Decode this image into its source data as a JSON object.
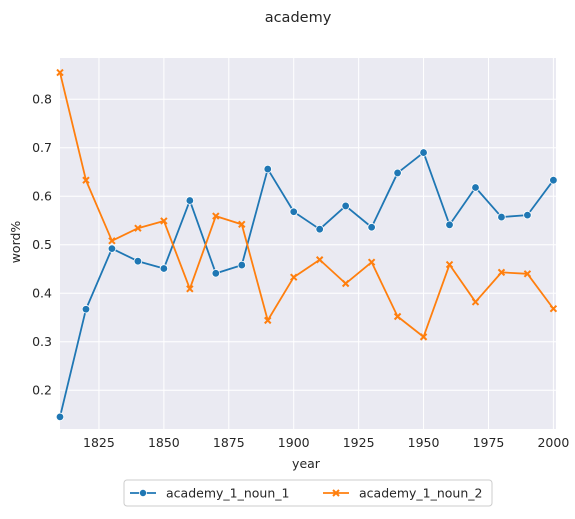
{
  "chart_data": {
    "type": "line",
    "title": "academy",
    "xlabel": "year",
    "ylabel": "word%",
    "xlim": [
      1810,
      2001
    ],
    "ylim": [
      0.12,
      0.885
    ],
    "xticks": [
      1825,
      1850,
      1875,
      1900,
      1925,
      1950,
      1975,
      2000
    ],
    "yticks": [
      0.2,
      0.3,
      0.4,
      0.5,
      0.6,
      0.7,
      0.8
    ],
    "ytick_labels": [
      "0.2",
      "0.3",
      "0.4",
      "0.5",
      "0.6",
      "0.7",
      "0.8"
    ],
    "grid": true,
    "legend_position": "bottom-center, outside plot",
    "x": [
      1810,
      1820,
      1830,
      1840,
      1850,
      1860,
      1870,
      1880,
      1890,
      1900,
      1910,
      1920,
      1930,
      1940,
      1950,
      1960,
      1970,
      1980,
      1990,
      2000
    ],
    "series": [
      {
        "name": "academy_1_noun_1",
        "color": "#1f77b4",
        "marker": "circle",
        "values": [
          0.145,
          0.367,
          0.492,
          0.466,
          0.451,
          0.591,
          0.441,
          0.458,
          0.656,
          0.568,
          0.532,
          0.58,
          0.536,
          0.648,
          0.69,
          0.541,
          0.618,
          0.557,
          0.561,
          0.633
        ]
      },
      {
        "name": "academy_1_noun_2",
        "color": "#ff7f0e",
        "marker": "x",
        "values": [
          0.855,
          0.633,
          0.508,
          0.534,
          0.549,
          0.409,
          0.559,
          0.542,
          0.344,
          0.433,
          0.469,
          0.42,
          0.464,
          0.352,
          0.31,
          0.459,
          0.382,
          0.443,
          0.44,
          0.368
        ]
      }
    ]
  },
  "colors": {
    "plot_background": "#eaeaf2",
    "grid": "#ffffff",
    "text": "#262626"
  }
}
